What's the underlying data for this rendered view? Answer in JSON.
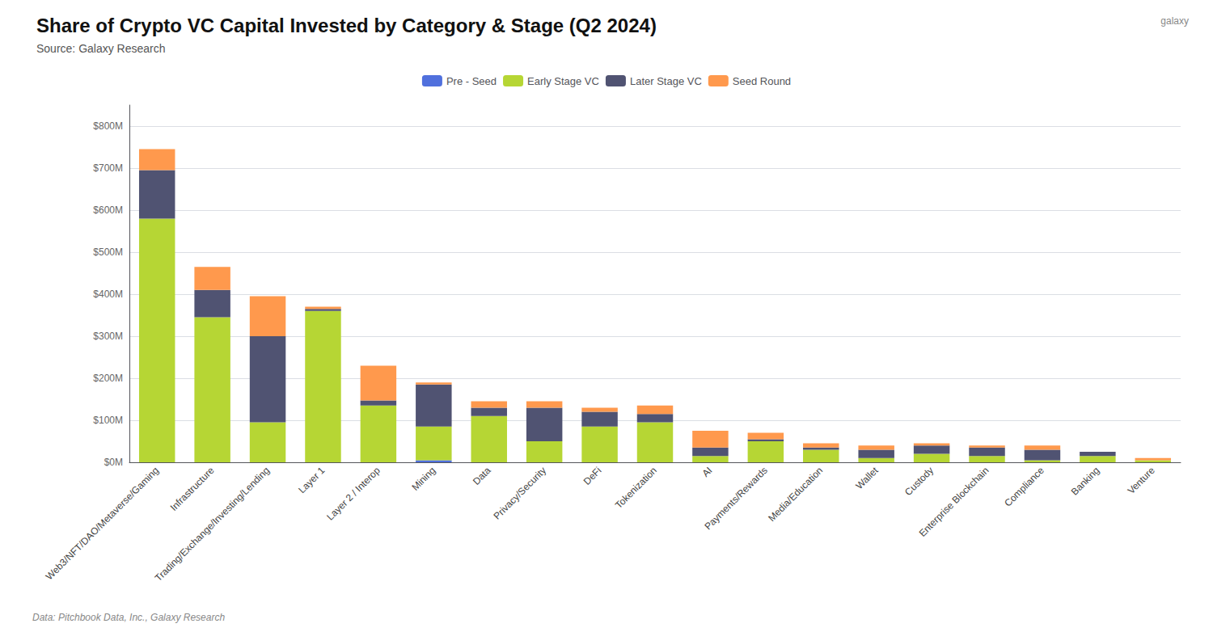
{
  "chart_data": {
    "type": "bar",
    "title": "Share of Crypto VC Capital Invested by Category & Stage (Q2 2024)",
    "subtitle": "Source: Galaxy Research",
    "annotations": [
      "Data: Pitchbook Data, Inc., Galaxy Research",
      "galaxy"
    ],
    "categories": [
      "Web3/NFT/DAO/Metaverse/Gaming",
      "Infrastructure",
      "Trading/Exchange/Investing/Lending",
      "Layer 1",
      "Layer 2 / Interop",
      "Mining",
      "Data",
      "Privacy/Security",
      "DeFi",
      "Tokenization",
      "AI",
      "Payments/Rewards",
      "Media/Education",
      "Wallet",
      "Custody",
      "Enterprise Blockchain",
      "Compliance",
      "Banking",
      "Venture"
    ],
    "series": [
      {
        "name": "Pre - Seed",
        "values": [
          0,
          0,
          0,
          0,
          0,
          5,
          0,
          0,
          0,
          0,
          0,
          0,
          0,
          0,
          0,
          0,
          0,
          0,
          0
        ]
      },
      {
        "name": "Early Stage VC",
        "values": [
          580,
          345,
          95,
          360,
          135,
          80,
          110,
          50,
          85,
          95,
          15,
          50,
          30,
          10,
          20,
          15,
          5,
          15,
          5
        ]
      },
      {
        "name": "Later Stage VC",
        "values": [
          115,
          65,
          205,
          5,
          12,
          100,
          20,
          80,
          35,
          20,
          20,
          5,
          5,
          20,
          20,
          20,
          25,
          10,
          0
        ]
      },
      {
        "name": "Seed Round",
        "values": [
          50,
          55,
          95,
          5,
          83,
          5,
          15,
          15,
          10,
          20,
          40,
          15,
          10,
          10,
          5,
          5,
          10,
          0,
          5
        ]
      }
    ],
    "stacked": true,
    "ylim": [
      0,
      850
    ],
    "yticks": [
      {
        "value": 0,
        "label": "$0M"
      },
      {
        "value": 100,
        "label": "$100M"
      },
      {
        "value": 200,
        "label": "$200M"
      },
      {
        "value": 300,
        "label": "$300M"
      },
      {
        "value": 400,
        "label": "$400M"
      },
      {
        "value": 500,
        "label": "$500M"
      },
      {
        "value": 600,
        "label": "$600M"
      },
      {
        "value": 700,
        "label": "$700M"
      },
      {
        "value": 800,
        "label": "$800M"
      }
    ],
    "grid": true,
    "legend": "top"
  }
}
